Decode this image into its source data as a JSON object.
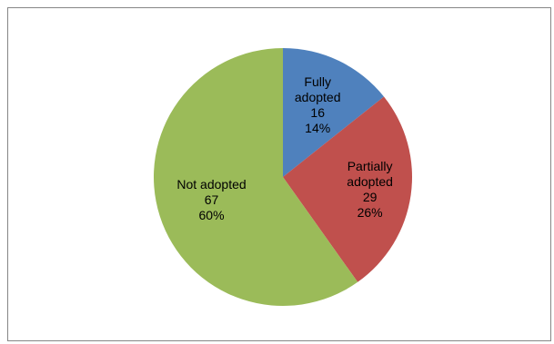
{
  "chart_data": {
    "type": "pie",
    "start_angle_deg": 0,
    "direction": "clockwise",
    "legend": "none",
    "slices": [
      {
        "category_lines": [
          "Fully",
          "adopted"
        ],
        "value": 16,
        "percent": "14%",
        "color": "#4F81BD"
      },
      {
        "category_lines": [
          "Partially",
          "adopted"
        ],
        "value": 29,
        "percent": "26%",
        "color": "#C0504D"
      },
      {
        "category_lines": [
          "Not adopted"
        ],
        "value": 67,
        "percent": "60%",
        "color": "#9BBB59"
      }
    ]
  }
}
